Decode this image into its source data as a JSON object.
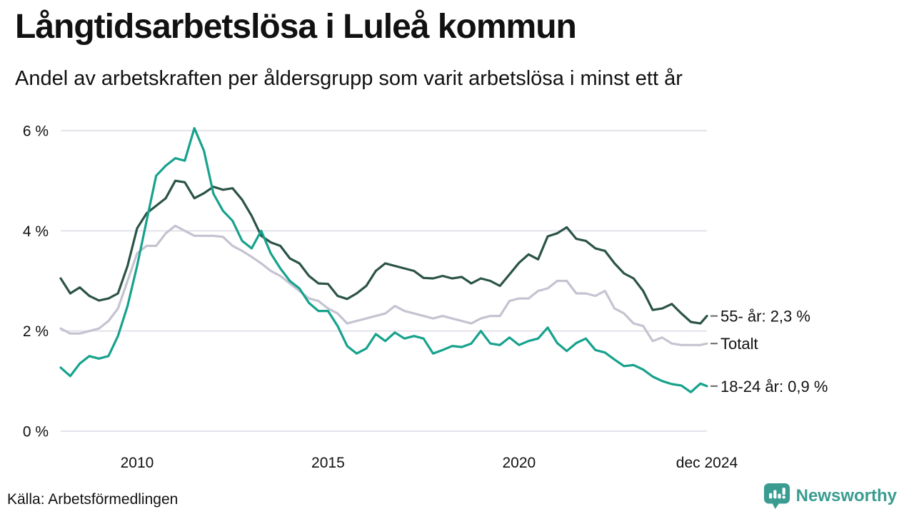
{
  "header": {
    "title": "Långtidsarbetslösa i Luleå kommun",
    "subtitle": "Andel av arbetskraften per åldersgrupp som varit arbetslösa i minst ett år"
  },
  "chart_data": {
    "type": "line",
    "title": "Långtidsarbetslösa i Luleå kommun",
    "xlabel": "",
    "ylabel": "",
    "grid": "horizontal",
    "legend_position": "right-end-labels",
    "xlim": [
      2008,
      2024.92
    ],
    "ylim": [
      0,
      6
    ],
    "y_ticks": [
      {
        "value": 0,
        "label": "0 %"
      },
      {
        "value": 2,
        "label": "2 %"
      },
      {
        "value": 4,
        "label": "4 %"
      },
      {
        "value": 6,
        "label": "6 %"
      }
    ],
    "x_ticks": [
      {
        "value": 2010,
        "label": "2010"
      },
      {
        "value": 2015,
        "label": "2015"
      },
      {
        "value": 2020,
        "label": "2020"
      },
      {
        "value": 2024.92,
        "label": "dec 2024"
      }
    ],
    "x": [
      2008,
      2008.25,
      2008.5,
      2008.75,
      2009,
      2009.25,
      2009.5,
      2009.75,
      2010,
      2010.25,
      2010.5,
      2010.75,
      2011,
      2011.25,
      2011.5,
      2011.75,
      2012,
      2012.25,
      2012.5,
      2012.75,
      2013,
      2013.25,
      2013.5,
      2013.75,
      2014,
      2014.25,
      2014.5,
      2014.75,
      2015,
      2015.25,
      2015.5,
      2015.75,
      2016,
      2016.25,
      2016.5,
      2016.75,
      2017,
      2017.25,
      2017.5,
      2017.75,
      2018,
      2018.25,
      2018.5,
      2018.75,
      2019,
      2019.25,
      2019.5,
      2019.75,
      2020,
      2020.25,
      2020.5,
      2020.75,
      2021,
      2021.25,
      2021.5,
      2021.75,
      2022,
      2022.25,
      2022.5,
      2022.75,
      2023,
      2023.25,
      2023.5,
      2023.75,
      2024,
      2024.25,
      2024.5,
      2024.75,
      2024.92
    ],
    "series": [
      {
        "id": "totalt",
        "name": "Totalt",
        "end_label": "Totalt",
        "end_value": 1.75,
        "color": "#c5c3d1",
        "values": [
          2.05,
          1.95,
          1.95,
          2.0,
          2.05,
          2.2,
          2.45,
          3.0,
          3.55,
          3.7,
          3.7,
          3.95,
          4.1,
          4.0,
          3.9,
          3.9,
          3.9,
          3.88,
          3.7,
          3.6,
          3.48,
          3.35,
          3.2,
          3.1,
          2.95,
          2.8,
          2.65,
          2.6,
          2.45,
          2.35,
          2.15,
          2.2,
          2.25,
          2.3,
          2.35,
          2.5,
          2.4,
          2.35,
          2.3,
          2.25,
          2.3,
          2.25,
          2.2,
          2.15,
          2.25,
          2.3,
          2.3,
          2.6,
          2.65,
          2.65,
          2.8,
          2.85,
          3.0,
          3.0,
          2.75,
          2.75,
          2.7,
          2.8,
          2.45,
          2.35,
          2.15,
          2.1,
          1.8,
          1.87,
          1.75,
          1.72,
          1.72,
          1.72,
          1.75
        ]
      },
      {
        "id": "55",
        "name": "55- år",
        "end_label": "55- år: 2,3 %",
        "end_value": 2.3,
        "color": "#2b5348",
        "values": [
          3.05,
          2.75,
          2.87,
          2.7,
          2.61,
          2.65,
          2.75,
          3.3,
          4.05,
          4.35,
          4.5,
          4.65,
          5.0,
          4.97,
          4.65,
          4.75,
          4.88,
          4.82,
          4.85,
          4.62,
          4.3,
          3.9,
          3.77,
          3.7,
          3.45,
          3.35,
          3.1,
          2.95,
          2.94,
          2.7,
          2.64,
          2.75,
          2.9,
          3.2,
          3.35,
          3.3,
          3.25,
          3.2,
          3.06,
          3.05,
          3.1,
          3.05,
          3.08,
          2.95,
          3.05,
          3.0,
          2.9,
          3.13,
          3.36,
          3.53,
          3.43,
          3.89,
          3.95,
          4.07,
          3.84,
          3.8,
          3.65,
          3.6,
          3.35,
          3.15,
          3.05,
          2.8,
          2.42,
          2.45,
          2.54,
          2.35,
          2.18,
          2.15,
          2.3
        ]
      },
      {
        "id": "18-24",
        "name": "18-24 år",
        "end_label": "18-24 år: 0,9 %",
        "end_value": 0.9,
        "color": "#16a28c",
        "values": [
          1.27,
          1.1,
          1.35,
          1.5,
          1.45,
          1.5,
          1.9,
          2.5,
          3.3,
          4.2,
          5.1,
          5.3,
          5.45,
          5.4,
          6.05,
          5.6,
          4.74,
          4.4,
          4.2,
          3.8,
          3.65,
          4.0,
          3.55,
          3.25,
          3.0,
          2.85,
          2.56,
          2.4,
          2.4,
          2.1,
          1.7,
          1.55,
          1.65,
          1.94,
          1.8,
          1.97,
          1.85,
          1.9,
          1.85,
          1.55,
          1.62,
          1.7,
          1.68,
          1.75,
          2.0,
          1.75,
          1.72,
          1.87,
          1.72,
          1.8,
          1.85,
          2.07,
          1.76,
          1.6,
          1.76,
          1.85,
          1.62,
          1.57,
          1.43,
          1.3,
          1.32,
          1.23,
          1.09,
          1.0,
          0.94,
          0.91,
          0.78,
          0.95,
          0.9
        ]
      }
    ]
  },
  "footer": {
    "source": "Källa: Arbetsförmedlingen",
    "brand": "Newsworthy"
  },
  "colors": {
    "grid": "#e4e2ea",
    "text": "#111111",
    "end_tick": "#666666",
    "brand": "#3a9c90"
  }
}
